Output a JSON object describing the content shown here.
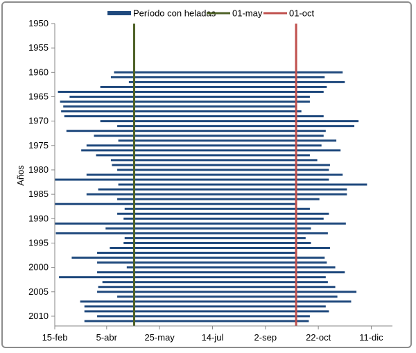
{
  "chart_data": {
    "type": "bar",
    "orientation": "horizontal-range",
    "ylabel": "Años",
    "xlabel": "",
    "title": "",
    "legend_position": "top",
    "grid": false,
    "x_tick_labels": [
      "15-feb",
      "5-abr",
      "25-may",
      "14-jul",
      "2-sep",
      "22-oct",
      "11-dic"
    ],
    "x_tick_days": [
      46,
      95,
      145,
      195,
      245,
      295,
      345
    ],
    "x_range_days": [
      46,
      365
    ],
    "y_tick_labels": [
      "1950",
      "1955",
      "1960",
      "1965",
      "1970",
      "1975",
      "1980",
      "1985",
      "1990",
      "1995",
      "2000",
      "2005",
      "2010"
    ],
    "y_range": [
      1950,
      2012
    ],
    "series": [
      {
        "name": "Período con heladas",
        "color": "#1f497d",
        "style": "range-bar",
        "years": [
          1960,
          1961,
          1962,
          1963,
          1964,
          1965,
          1966,
          1967,
          1968,
          1969,
          1970,
          1971,
          1972,
          1973,
          1974,
          1975,
          1976,
          1977,
          1978,
          1979,
          1980,
          1981,
          1982,
          1983,
          1984,
          1985,
          1986,
          1987,
          1988,
          1989,
          1990,
          1991,
          1992,
          1993,
          1994,
          1995,
          1996,
          1997,
          1998,
          1999,
          2000,
          2001,
          2002,
          2003,
          2004,
          2005,
          2006,
          2007,
          2008,
          2009,
          2010,
          2011
        ],
        "start_day": [
          102,
          99,
          116,
          89,
          49,
          60,
          51,
          54,
          52,
          55,
          89,
          105,
          57,
          83,
          106,
          76,
          71,
          85,
          99,
          100,
          105,
          76,
          46,
          106,
          87,
          76,
          105,
          46,
          112,
          105,
          111,
          46,
          94,
          47,
          112,
          111,
          98,
          86,
          62,
          86,
          114,
          86,
          50,
          91,
          87,
          86,
          105,
          70,
          74,
          74,
          86,
          74
        ],
        "end_day": [
          318,
          301,
          320,
          303,
          300,
          287,
          287,
          273,
          279,
          300,
          333,
          329,
          302,
          300,
          312,
          298,
          316,
          287,
          294,
          306,
          305,
          318,
          305,
          341,
          322,
          322,
          296,
          273,
          287,
          305,
          300,
          321,
          288,
          304,
          283,
          288,
          306,
          273,
          301,
          303,
          311,
          320,
          302,
          304,
          311,
          331,
          313,
          326,
          302,
          305,
          287,
          286
        ]
      },
      {
        "name": "01-may",
        "color": "#4f6228",
        "style": "vertical-line",
        "x_day": 121
      },
      {
        "name": "01-oct",
        "color": "#c0504d",
        "style": "vertical-line",
        "x_day": 274
      }
    ]
  }
}
